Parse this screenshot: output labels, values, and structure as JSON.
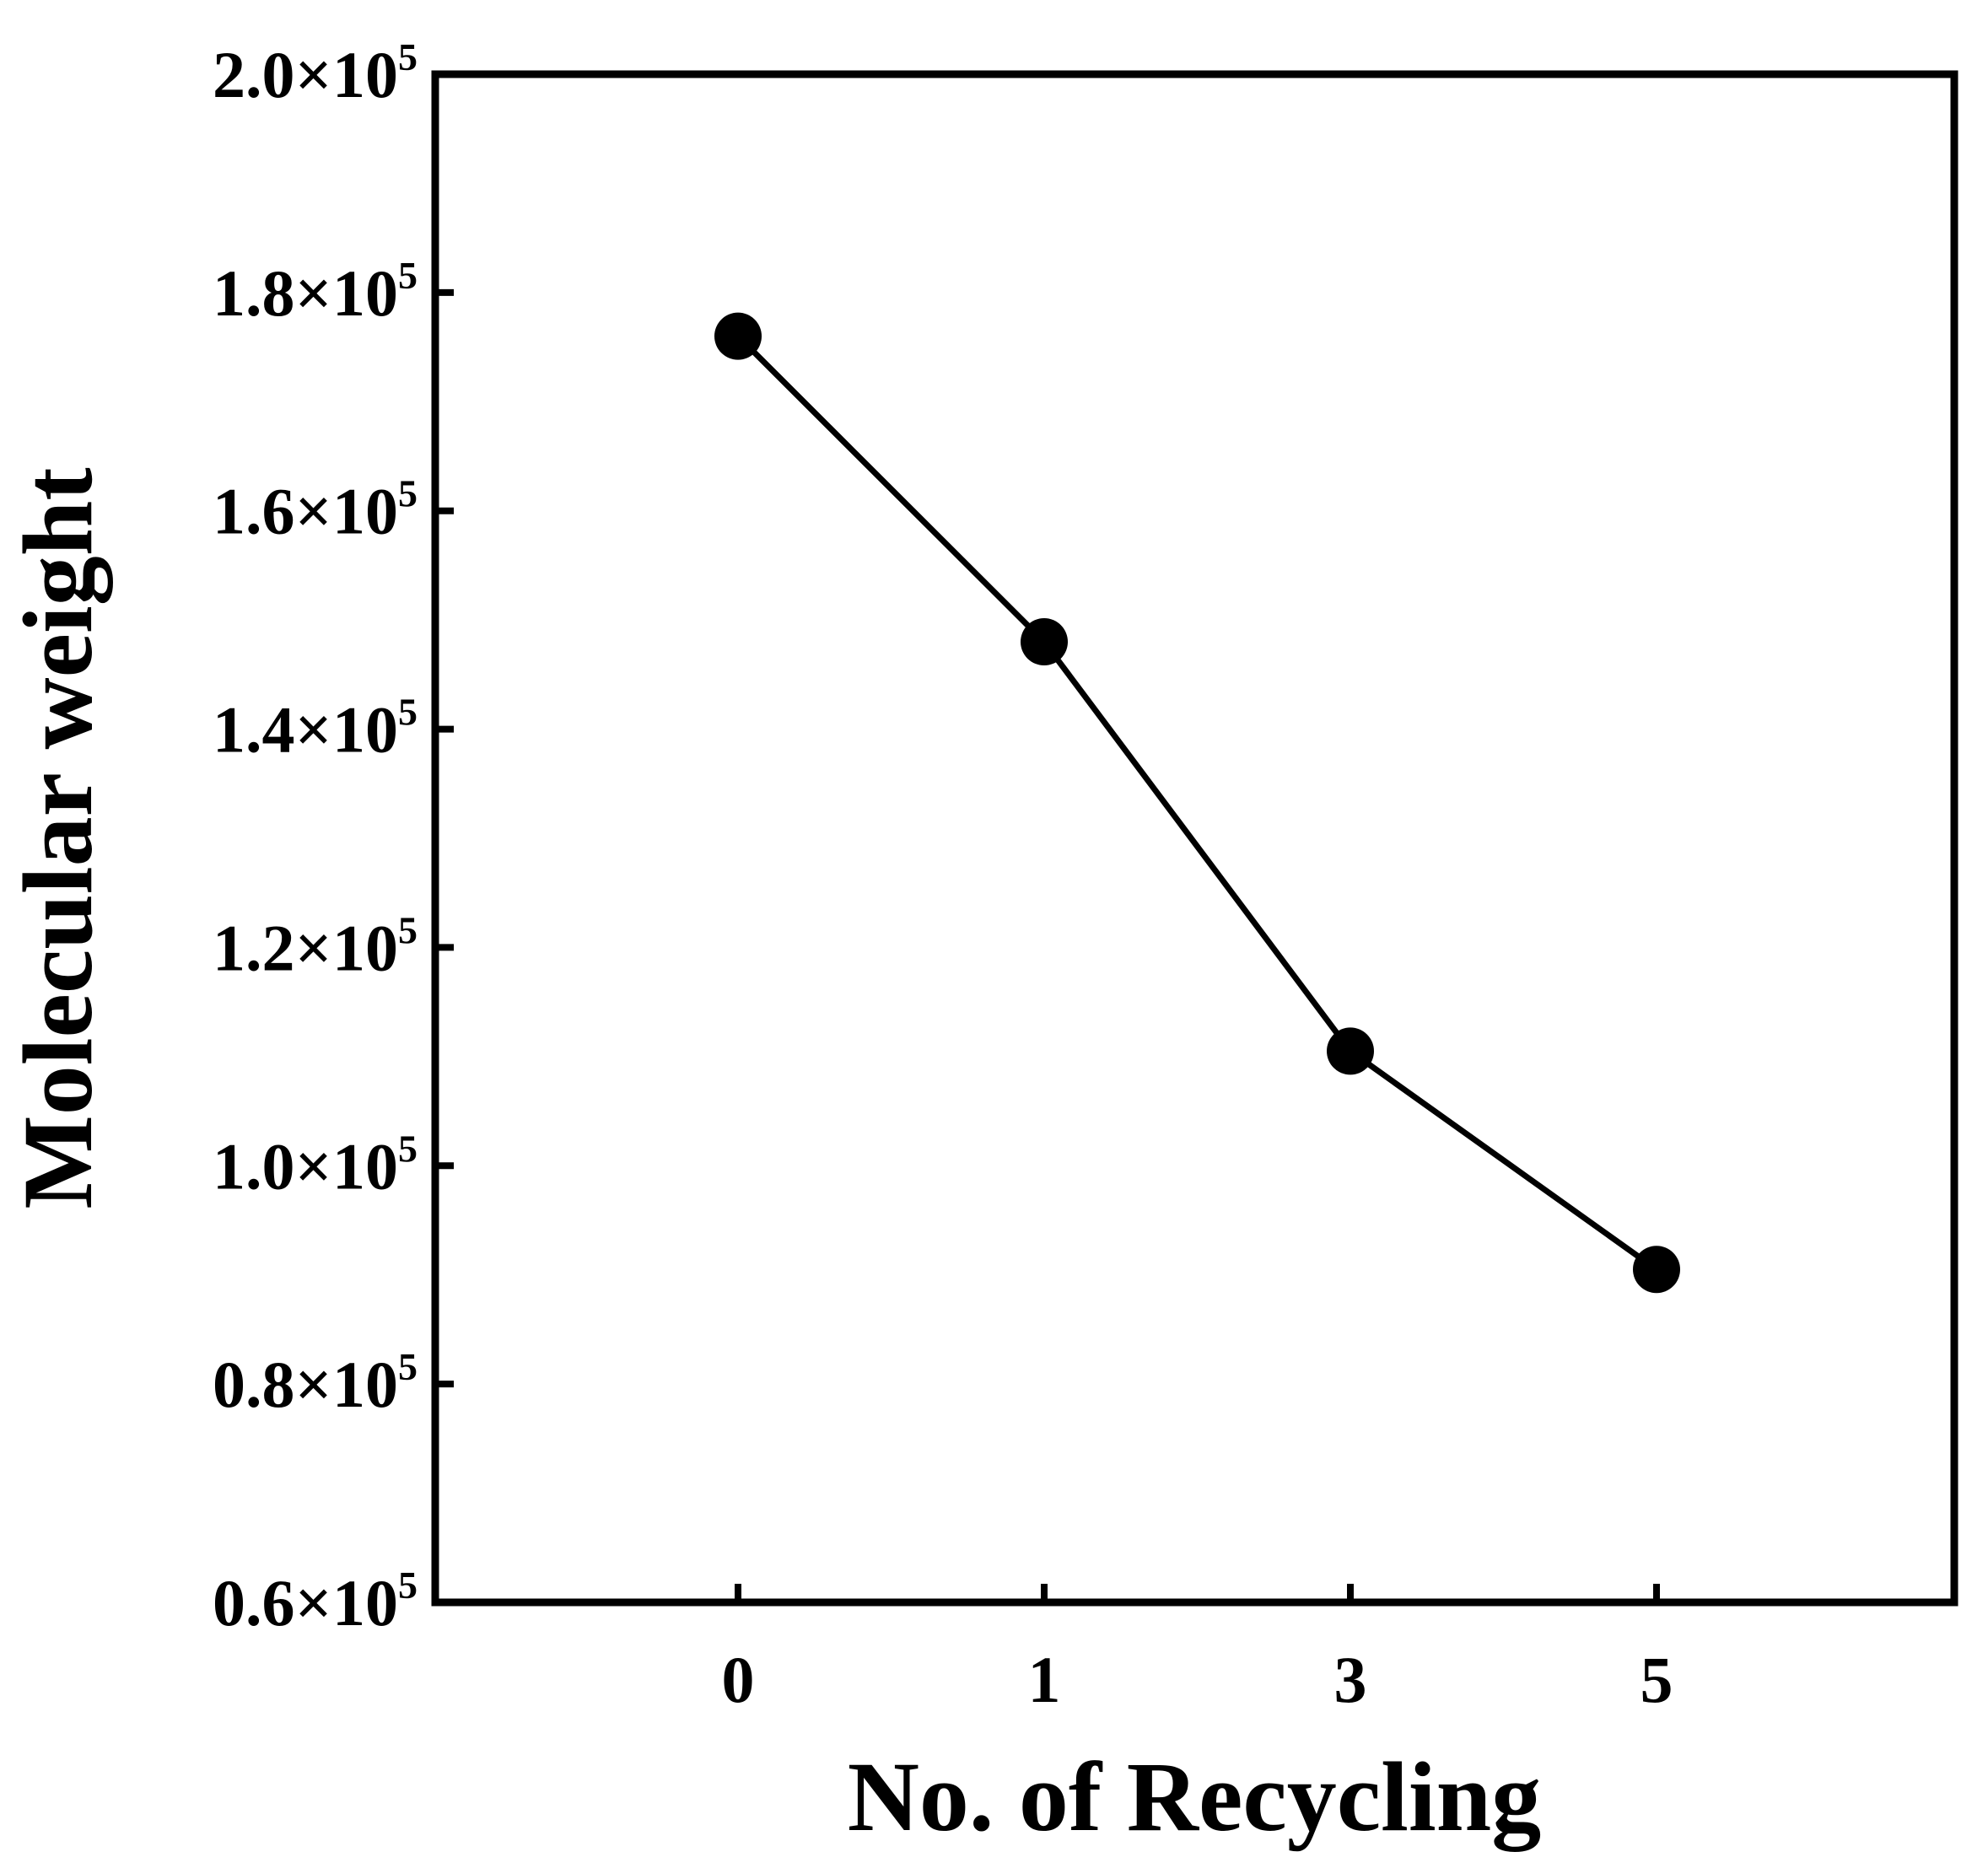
{
  "chart_data": {
    "type": "line",
    "title": "",
    "xlabel": "No. of Recycling",
    "ylabel": "Molecular weight",
    "categories": [
      "0",
      "1",
      "3",
      "5"
    ],
    "series": [
      {
        "values": [
          176000,
          148000,
          110500,
          90500
        ],
        "color": "#000000",
        "marker": "filled-circle"
      }
    ],
    "ylim": [
      60000,
      200000
    ],
    "yticks": [
      {
        "value": 60000,
        "mantissa": "0.6",
        "times": "×10",
        "exp": "5"
      },
      {
        "value": 80000,
        "mantissa": "0.8",
        "times": "×10",
        "exp": "5"
      },
      {
        "value": 100000,
        "mantissa": "1.0",
        "times": "×10",
        "exp": "5"
      },
      {
        "value": 120000,
        "mantissa": "1.2",
        "times": "×10",
        "exp": "5"
      },
      {
        "value": 140000,
        "mantissa": "1.4",
        "times": "×10",
        "exp": "5"
      },
      {
        "value": 160000,
        "mantissa": "1.6",
        "times": "×10",
        "exp": "5"
      },
      {
        "value": 180000,
        "mantissa": "1.8",
        "times": "×10",
        "exp": "5"
      },
      {
        "value": 200000,
        "mantissa": "2.0",
        "times": "×10",
        "exp": "5"
      }
    ],
    "grid": false,
    "legend": "none"
  }
}
